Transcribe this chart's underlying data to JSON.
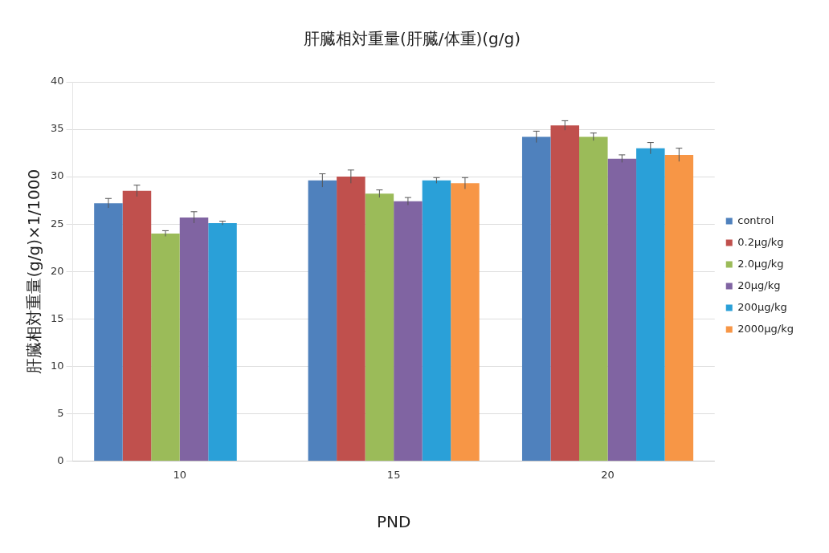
{
  "chart_data": {
    "type": "bar",
    "title": "肝臓相対重量(肝臓/体重)(g/g)",
    "xlabel": "PND",
    "ylabel": "肝臓相対重量(g/g)×1/1000",
    "categories": [
      "10",
      "15",
      "20"
    ],
    "ylim": [
      0,
      40
    ],
    "yticks": [
      0,
      5,
      10,
      15,
      20,
      25,
      30,
      35,
      40
    ],
    "grid": "y",
    "legend": "right",
    "series": [
      {
        "name": "control",
        "color": "#4f81bd",
        "values": [
          27.2,
          29.6,
          34.2
        ],
        "errors": [
          0.5,
          0.7,
          0.6
        ]
      },
      {
        "name": "0.2μg/kg",
        "color": "#c0504d",
        "values": [
          28.5,
          30.0,
          35.4
        ],
        "errors": [
          0.6,
          0.7,
          0.5
        ]
      },
      {
        "name": "2.0μg/kg",
        "color": "#9bbb59",
        "values": [
          24.0,
          28.2,
          34.2
        ],
        "errors": [
          0.3,
          0.4,
          0.4
        ]
      },
      {
        "name": "20μg/kg",
        "color": "#8064a2",
        "values": [
          25.7,
          27.4,
          31.9
        ],
        "errors": [
          0.6,
          0.4,
          0.4
        ]
      },
      {
        "name": "200μg/kg",
        "color": "#2aa0d8",
        "values": [
          25.1,
          29.6,
          33.0
        ],
        "errors": [
          0.2,
          0.3,
          0.6
        ]
      },
      {
        "name": "2000μg/kg",
        "color": "#f79646",
        "values": [
          null,
          29.3,
          32.3
        ],
        "errors": [
          null,
          0.6,
          0.7
        ]
      }
    ]
  }
}
